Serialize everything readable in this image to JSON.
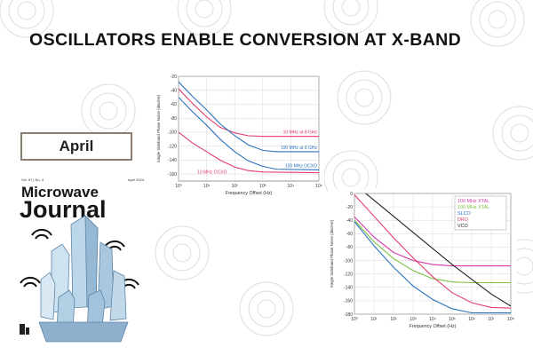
{
  "headline": "OSCILLATORS ENABLE CONVERSION AT X-BAND",
  "month_label": "April",
  "magazine": {
    "title_line1": "Microwave",
    "title_line2": "Journal",
    "volume": "Vol. 67 | No. 4",
    "issue_date": "April 2024"
  },
  "colors": {
    "red": "#e33e6f",
    "blue": "#2a72be",
    "green": "#7cc242",
    "magenta": "#d63aa8",
    "black": "#222222"
  },
  "chart_data": [
    {
      "type": "line",
      "ylabel": "Single Sideband Phase Noise (dBc/Hz)",
      "xlabel": "Frequency Offset (Hz)",
      "xscale": "log",
      "xlim": [
        1,
        100000
      ],
      "ylim": [
        -170,
        -20
      ],
      "xticks": [
        "10⁰",
        "10¹",
        "10²",
        "10³",
        "10⁴",
        "10⁵"
      ],
      "yticks": [
        -20,
        -40,
        -60,
        -80,
        -100,
        -120,
        -140,
        -160
      ],
      "grid": true,
      "series": [
        {
          "name": "10 MHz at 8 GHz",
          "color": "red",
          "label_pos": "right",
          "points": [
            [
              1,
              -38
            ],
            [
              3,
              -58
            ],
            [
              10,
              -78
            ],
            [
              30,
              -93
            ],
            [
              100,
              -101
            ],
            [
              300,
              -105
            ],
            [
              1000,
              -106
            ],
            [
              100000,
              -106
            ]
          ]
        },
        {
          "name": "100 MHz at 8 GHz",
          "color": "blue",
          "label_pos": "right",
          "points": [
            [
              1,
              -28
            ],
            [
              3,
              -48
            ],
            [
              10,
              -68
            ],
            [
              30,
              -88
            ],
            [
              100,
              -105
            ],
            [
              300,
              -118
            ],
            [
              1000,
              -126
            ],
            [
              3000,
              -128
            ],
            [
              100000,
              -128
            ]
          ]
        },
        {
          "name": "100 MHz OCXO",
          "color": "blue",
          "label_pos": "right",
          "points": [
            [
              1,
              -50
            ],
            [
              3,
              -70
            ],
            [
              10,
              -90
            ],
            [
              30,
              -110
            ],
            [
              100,
              -128
            ],
            [
              300,
              -141
            ],
            [
              1000,
              -149
            ],
            [
              3000,
              -153
            ],
            [
              100000,
              -154
            ]
          ]
        },
        {
          "name": "10 MHz OCXO",
          "color": "red",
          "label_pos": "left",
          "points": [
            [
              1,
              -100
            ],
            [
              3,
              -115
            ],
            [
              10,
              -128
            ],
            [
              30,
              -140
            ],
            [
              100,
              -150
            ],
            [
              300,
              -155
            ],
            [
              1000,
              -157
            ],
            [
              100000,
              -158
            ]
          ]
        }
      ]
    },
    {
      "type": "line",
      "ylabel": "Single Sideband Phase Noise (dBc/Hz)",
      "xlabel": "Frequency Offset (Hz)",
      "xscale": "log",
      "xlim": [
        1,
        100000000
      ],
      "ylim": [
        -180,
        0
      ],
      "xticks": [
        "10⁰",
        "10¹",
        "10²",
        "10³",
        "10⁴",
        "10⁵",
        "10⁶",
        "10⁷",
        "10⁸"
      ],
      "yticks": [
        0,
        -20,
        -40,
        -60,
        -80,
        -100,
        -120,
        -140,
        -160,
        -180
      ],
      "grid": true,
      "legend": "top-right",
      "series": [
        {
          "name": "100 MHz XTAL",
          "color": "magenta",
          "points": [
            [
              1,
              -35
            ],
            [
              10,
              -65
            ],
            [
              100,
              -88
            ],
            [
              1000,
              -100
            ],
            [
              10000,
              -106
            ],
            [
              100000,
              -108
            ],
            [
              100000000,
              -108
            ]
          ]
        },
        {
          "name": "100 MHz XTAL",
          "color": "green",
          "points": [
            [
              1,
              -40
            ],
            [
              10,
              -72
            ],
            [
              100,
              -97
            ],
            [
              1000,
              -115
            ],
            [
              10000,
              -127
            ],
            [
              100000,
              -132
            ],
            [
              1000000,
              -133
            ],
            [
              100000000,
              -133
            ]
          ]
        },
        {
          "name": "SLCO",
          "color": "blue",
          "points": [
            [
              1,
              -42
            ],
            [
              10,
              -78
            ],
            [
              100,
              -110
            ],
            [
              1000,
              -138
            ],
            [
              10000,
              -158
            ],
            [
              100000,
              -172
            ],
            [
              1000000,
              -178
            ],
            [
              100000000,
              -178
            ]
          ]
        },
        {
          "name": "DRO",
          "color": "red",
          "points": [
            [
              1,
              -2
            ],
            [
              10,
              -34
            ],
            [
              100,
              -66
            ],
            [
              1000,
              -96
            ],
            [
              10000,
              -124
            ],
            [
              100000,
              -148
            ],
            [
              1000000,
              -163
            ],
            [
              10000000,
              -170
            ],
            [
              100000000,
              -171
            ]
          ]
        },
        {
          "name": "VCO",
          "color": "black",
          "points": [
            [
              1,
              14
            ],
            [
              10,
              -10
            ],
            [
              100,
              -34
            ],
            [
              1000,
              -58
            ],
            [
              10000,
              -82
            ],
            [
              100000,
              -106
            ],
            [
              1000000,
              -128
            ],
            [
              10000000,
              -150
            ],
            [
              100000000,
              -168
            ]
          ]
        }
      ]
    }
  ]
}
